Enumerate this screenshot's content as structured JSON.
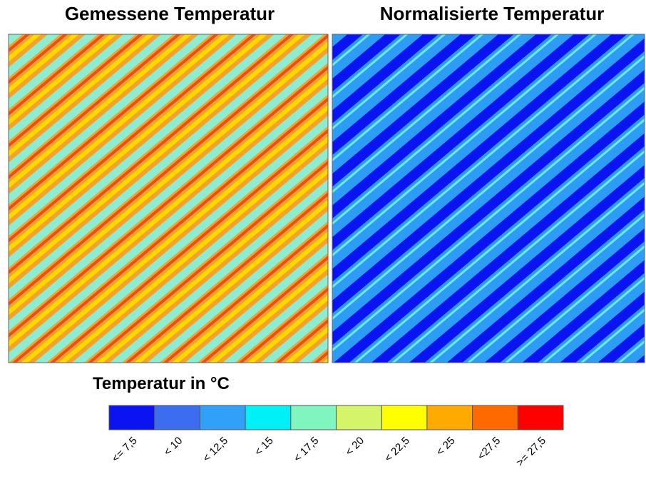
{
  "panels": [
    {
      "title": "Gemessene Temperatur"
    },
    {
      "title": "Normalisierte Temperatur"
    }
  ],
  "legend": {
    "title": "Temperatur in °C",
    "items": [
      {
        "label": "<= 7,5",
        "color": "#0a14f0"
      },
      {
        "label": "< 10",
        "color": "#3c6cf0"
      },
      {
        "label": "< 12,5",
        "color": "#30a0f8"
      },
      {
        "label": "< 15",
        "color": "#00f0f8"
      },
      {
        "label": "< 17,5",
        "color": "#80f5c0"
      },
      {
        "label": "< 20",
        "color": "#d4f56a"
      },
      {
        "label": "< 22,5",
        "color": "#ffff00"
      },
      {
        "label": "< 25",
        "color": "#ffaa00"
      },
      {
        "label": "<27,5",
        "color": "#ff6a00"
      },
      {
        "label": ">= 27,5",
        "color": "#ff0000"
      }
    ]
  }
}
